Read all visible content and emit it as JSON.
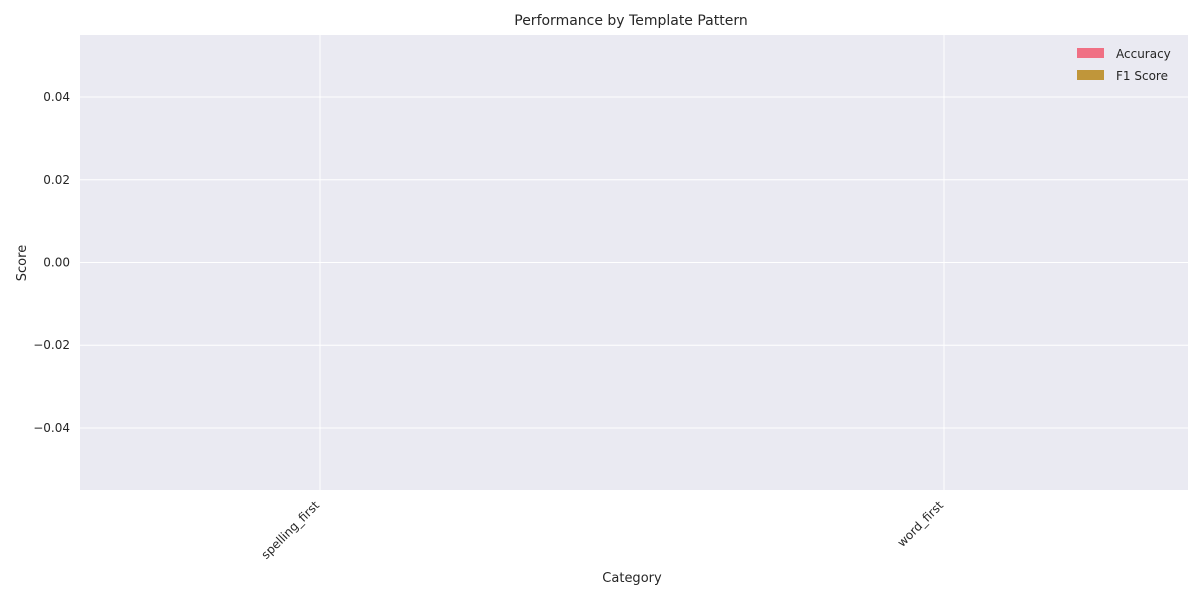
{
  "chart_data": {
    "type": "bar",
    "title": "Performance by Template Pattern",
    "xlabel": "Category",
    "ylabel": "Score",
    "categories": [
      "spelling_first",
      "word_first"
    ],
    "series": [
      {
        "name": "Accuracy",
        "values": [
          0,
          0
        ],
        "color": "#f07084"
      },
      {
        "name": "F1 Score",
        "values": [
          0,
          0
        ],
        "color": "#c0963a"
      }
    ],
    "ylim": [
      -0.055,
      0.055
    ],
    "yticks": [
      -0.04,
      -0.02,
      0.0,
      0.02,
      0.04
    ],
    "ytick_labels": [
      "−0.04",
      "−0.02",
      "0.00",
      "0.02",
      "0.04"
    ],
    "grid": true,
    "legend_position": "top-right",
    "x_tick_rotation": "45 degrees"
  }
}
